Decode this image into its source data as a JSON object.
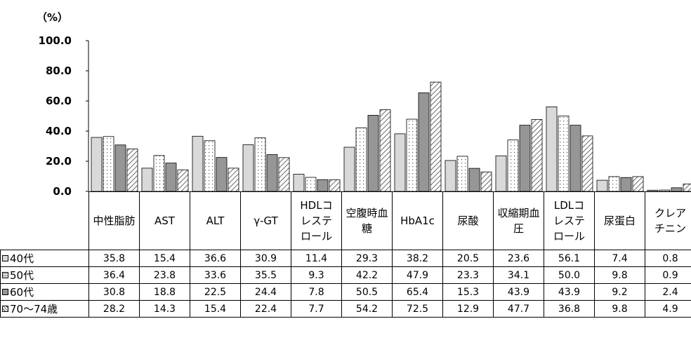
{
  "unit_label": "（%）",
  "chart_data": {
    "type": "bar",
    "ylim": [
      0,
      100
    ],
    "yticks": [
      "0.0",
      "20.0",
      "40.0",
      "60.0",
      "80.0",
      "100.0"
    ],
    "categories": [
      "中性脂肪",
      "AST",
      "ALT",
      "γ-GT",
      "HDLコレステロール",
      "空腹時血糖",
      "HbA1c",
      "尿酸",
      "収縮期血圧",
      "LDLコレステロール",
      "尿蛋白",
      "クレアチニン"
    ],
    "series": [
      {
        "name": "40代",
        "fill": "#d9d9d9",
        "pattern": "solid",
        "values": [
          35.8,
          15.4,
          36.6,
          30.9,
          11.4,
          29.3,
          38.2,
          20.5,
          23.6,
          56.1,
          7.4,
          0.8
        ]
      },
      {
        "name": "50代",
        "fill": "#ffffff",
        "pattern": "dots",
        "values": [
          36.4,
          23.8,
          33.6,
          35.5,
          9.3,
          42.2,
          47.9,
          23.3,
          34.1,
          50.0,
          9.8,
          0.9
        ]
      },
      {
        "name": "60代",
        "fill": "#969696",
        "pattern": "solid",
        "values": [
          30.8,
          18.8,
          22.5,
          24.4,
          7.8,
          50.5,
          65.4,
          15.3,
          43.9,
          43.9,
          9.2,
          2.4
        ]
      },
      {
        "name": "70～74歳",
        "fill": "#ffffff",
        "pattern": "hatch",
        "values": [
          28.2,
          14.3,
          15.4,
          22.4,
          7.7,
          54.2,
          72.5,
          12.9,
          47.7,
          36.8,
          9.8,
          4.9
        ]
      }
    ]
  },
  "table": {
    "values_text": [
      [
        "35.8",
        "15.4",
        "36.6",
        "30.9",
        "11.4",
        "29.3",
        "38.2",
        "20.5",
        "23.6",
        "56.1",
        "7.4",
        "0.8"
      ],
      [
        "36.4",
        "23.8",
        "33.6",
        "35.5",
        "9.3",
        "42.2",
        "47.9",
        "23.3",
        "34.1",
        "50.0",
        "9.8",
        "0.9"
      ],
      [
        "30.8",
        "18.8",
        "22.5",
        "24.4",
        "7.8",
        "50.5",
        "65.4",
        "15.3",
        "43.9",
        "43.9",
        "9.2",
        "2.4"
      ],
      [
        "28.2",
        "14.3",
        "15.4",
        "22.4",
        "7.7",
        "54.2",
        "72.5",
        "12.9",
        "47.7",
        "36.8",
        "9.8",
        "4.9"
      ]
    ]
  }
}
